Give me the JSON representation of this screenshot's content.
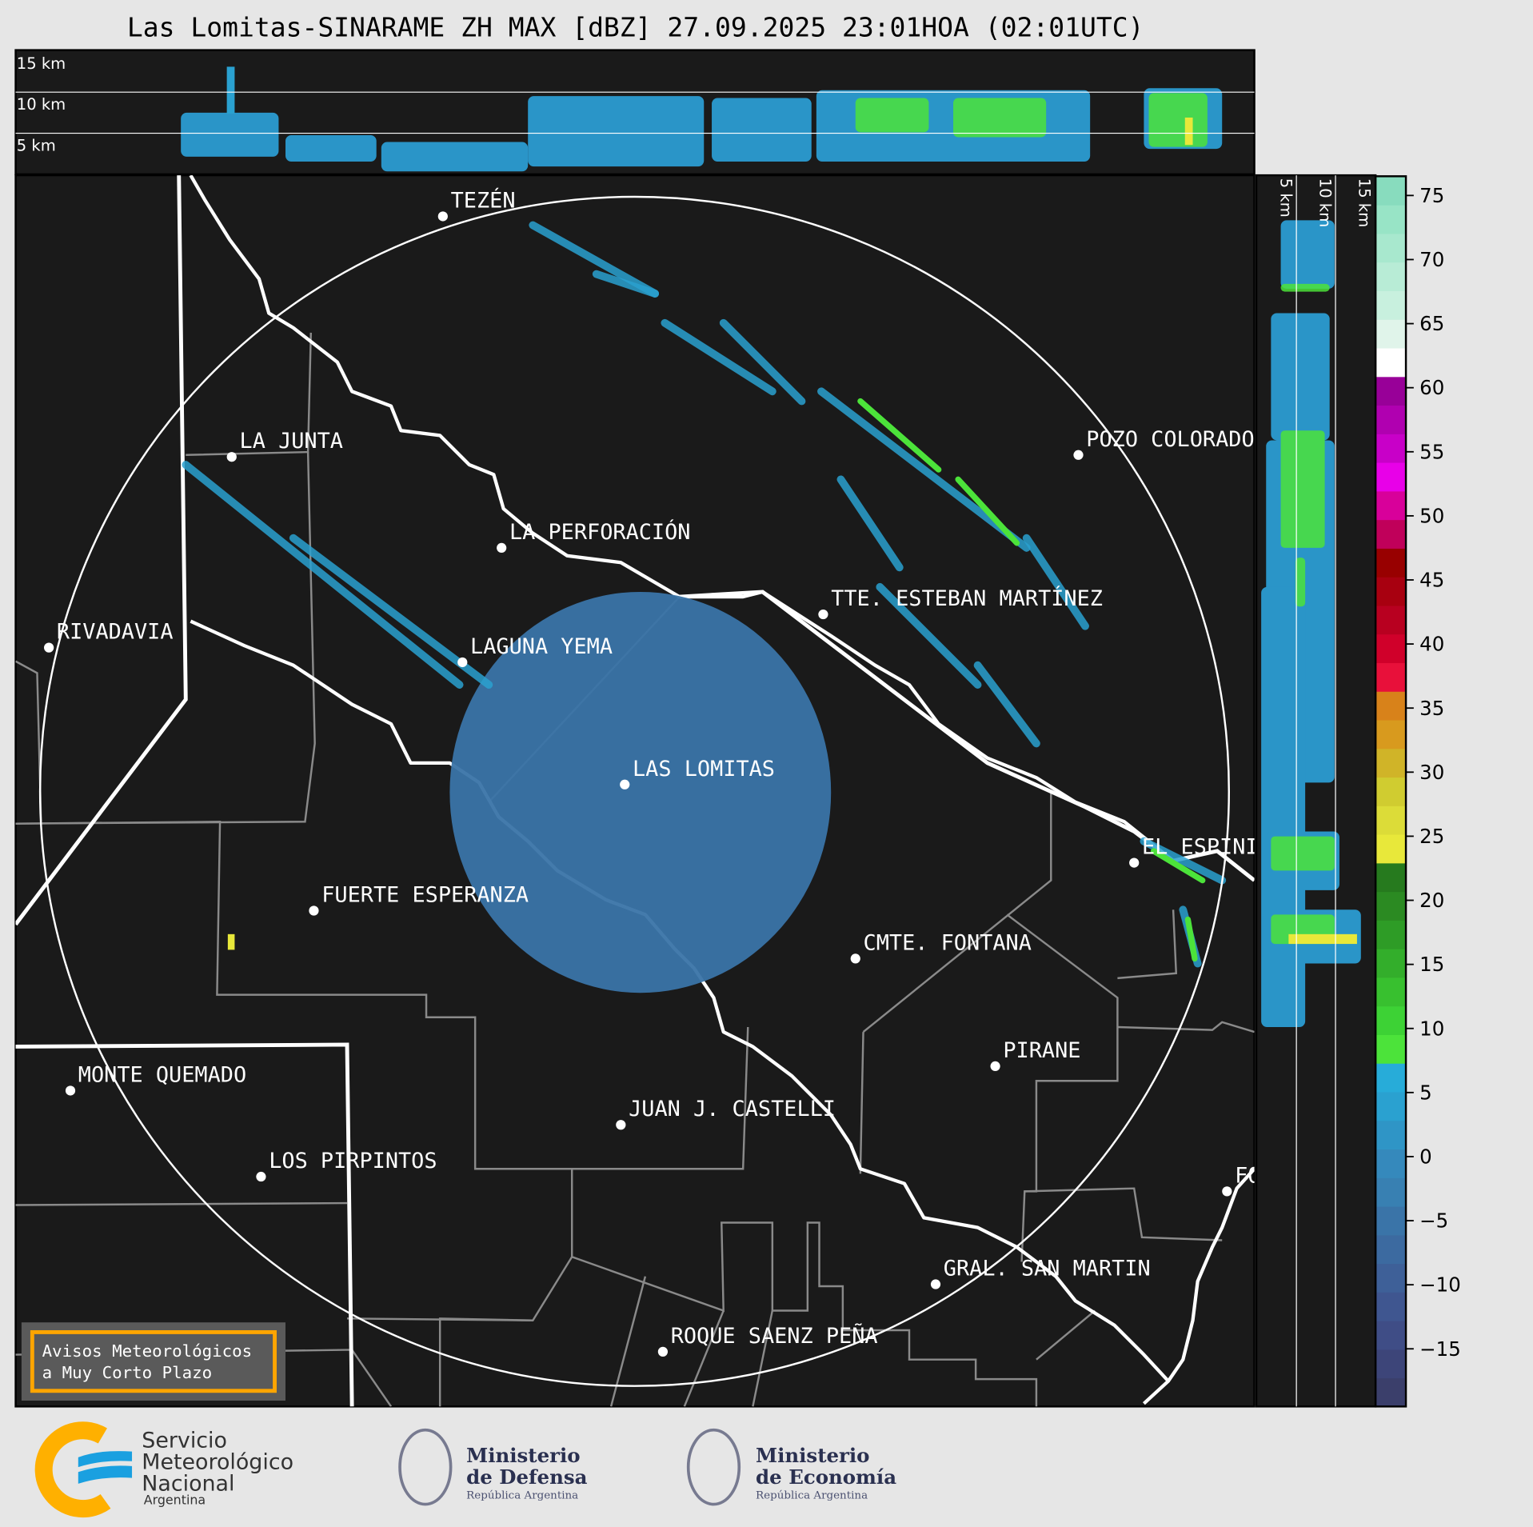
{
  "title": "Las Lomitas-SINARAME ZH MAX [dBZ] 27.09.2025 23:01HOA (02:01UTC)",
  "top_panel": {
    "height_labels": [
      "15 km",
      "10 km",
      "5 km"
    ]
  },
  "side_panel": {
    "height_labels": [
      "5 km",
      "10 km",
      "15 km"
    ]
  },
  "colorbar": {
    "ticks": [
      "75",
      "70",
      "65",
      "60",
      "55",
      "50",
      "45",
      "40",
      "35",
      "30",
      "25",
      "20",
      "15",
      "10",
      "5",
      "0",
      "−5",
      "−10",
      "−15"
    ],
    "range": [
      -19.5,
      76.5
    ],
    "colors": [
      "#3b3f6b",
      "#3d4579",
      "#3f4d86",
      "#3f5690",
      "#3e6098",
      "#3c6aa0",
      "#3a74a8",
      "#3880b2",
      "#3589bc",
      "#2f95c6",
      "#2aa1d0",
      "#27acd9",
      "#4ce33a",
      "#3dd235",
      "#38c02f",
      "#33ae2b",
      "#2e9c26",
      "#2b8a22",
      "#267a1e",
      "#e8e83a",
      "#dcdc38",
      "#d0cc30",
      "#d0b428",
      "#d89a1e",
      "#d8821a",
      "#e8103a",
      "#d0002a",
      "#b80020",
      "#a80010",
      "#980000",
      "#c0005a",
      "#d8009a",
      "#e800e8",
      "#c800c8",
      "#b000b0",
      "#980098",
      "#ffffff",
      "#e0f4ea",
      "#c8f0de",
      "#b8ecd6",
      "#a8e8ce",
      "#98e4c6",
      "#88dcbe"
    ]
  },
  "cities": [
    {
      "name": "TEZÉN"
    },
    {
      "name": "LA JUNTA"
    },
    {
      "name": "POZO COLORADO"
    },
    {
      "name": "LA PERFORACIÓN"
    },
    {
      "name": "RIVADAVIA"
    },
    {
      "name": "TTE. ESTEBAN MARTÍNEZ"
    },
    {
      "name": "LAGUNA YEMA"
    },
    {
      "name": "LAS LOMITAS"
    },
    {
      "name": "EL ESPINILLO"
    },
    {
      "name": "FUERTE ESPERANZA"
    },
    {
      "name": "CMTE. FONTANA"
    },
    {
      "name": "PIRANE"
    },
    {
      "name": "MONTE QUEMADO"
    },
    {
      "name": "JUAN J. CASTELLI"
    },
    {
      "name": "LOS PIRPINTOS"
    },
    {
      "name": "FORMOSA"
    },
    {
      "name": "GRAL. SAN MARTIN"
    },
    {
      "name": "ROQUE SAENZ PEÑA"
    }
  ],
  "warning_box": {
    "line1": "Avisos Meteorológicos",
    "line2": "a Muy Corto Plazo",
    "border_color": "#ffa500"
  },
  "logos": {
    "smn": {
      "line1": "Servicio",
      "line2": "Meteorológico",
      "line3": "Nacional",
      "line4": "Argentina"
    },
    "defensa": {
      "line1": "Ministerio",
      "line2": "de Defensa",
      "line3": "República Argentina"
    },
    "economia": {
      "line1": "Ministerio",
      "line2": "de Economía",
      "line3": "República Argentina"
    }
  }
}
